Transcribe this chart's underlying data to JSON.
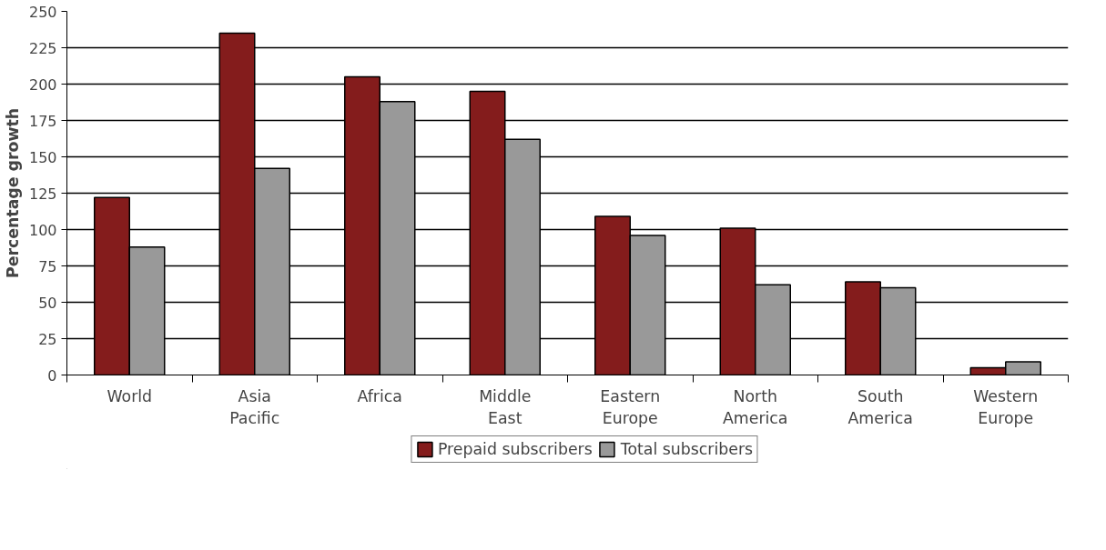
{
  "chart_data": {
    "type": "bar",
    "ylabel": "Percentage growth",
    "categories": [
      "World",
      "Asia Pacific",
      "Africa",
      "Middle East",
      "Eastern Europe",
      "North America",
      "South America",
      "Western Europe"
    ],
    "series": [
      {
        "name": "Prepaid subscribers",
        "color": "#841c1c",
        "values": [
          122,
          235,
          205,
          195,
          109,
          101,
          64,
          5
        ]
      },
      {
        "name": "Total subscribers",
        "color": "#999999",
        "values": [
          88,
          142,
          188,
          162,
          96,
          62,
          60,
          9
        ]
      }
    ],
    "ylim": [
      0,
      250
    ],
    "yticks": [
      0,
      25,
      50,
      75,
      100,
      125,
      150,
      175,
      200,
      225,
      250
    ],
    "grid": "y",
    "legend": "bottom"
  }
}
